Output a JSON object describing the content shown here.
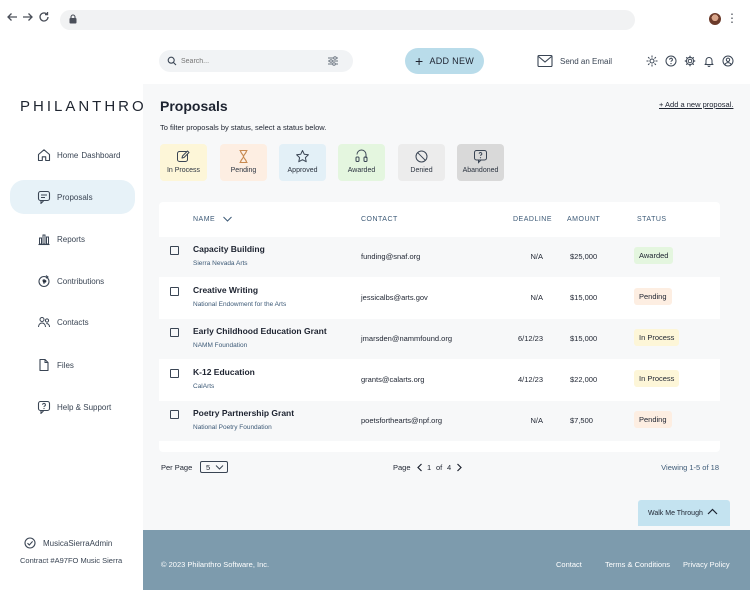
{
  "app": {
    "logo": "PHILANTHRO",
    "accent": "#b9dcea",
    "footer_color": "#7d9bad"
  },
  "browser": {
    "back_icon": "arrow-left-icon",
    "forward_icon": "arrow-right-icon",
    "reload_icon": "reload-icon"
  },
  "sidebar": {
    "items": [
      {
        "label": "Home",
        "sublabel": "Dashboard",
        "icon": "home-icon"
      },
      {
        "label": "Proposals",
        "icon": "chat-icon",
        "active": true
      },
      {
        "label": "Reports",
        "icon": "bar-chart-icon"
      },
      {
        "label": "Contributions",
        "icon": "donation-icon"
      },
      {
        "label": "Contacts",
        "icon": "people-icon"
      },
      {
        "label": "Files",
        "icon": "file-icon"
      },
      {
        "label": "Help & Support",
        "icon": "help-icon"
      }
    ],
    "user": "MusicaSierraAdmin",
    "contract": "Contract #A97FO Music Sierra"
  },
  "topbar": {
    "search_placeholder": "Search...",
    "add_new": "ADD NEW",
    "send_email": "Send an Email"
  },
  "main": {
    "title": "Proposals",
    "add_proposal_link": "+ Add a new proposal.",
    "filter_hint": "To filter proposals by status, select a status below.",
    "status_filters": [
      {
        "label": "In Process",
        "icon": "edit-icon",
        "color": "#fdf6d8"
      },
      {
        "label": "Pending",
        "icon": "hourglass-icon",
        "color": "#fdeee2"
      },
      {
        "label": "Approved",
        "icon": "star-icon",
        "color": "#e3f0f7"
      },
      {
        "label": "Awarded",
        "icon": "award-icon",
        "color": "#e4f6df"
      },
      {
        "label": "Denied",
        "icon": "denied-icon",
        "color": "#ececec"
      },
      {
        "label": "Abandoned",
        "icon": "message-question-icon",
        "color": "#d9d9d9"
      }
    ],
    "table": {
      "headers": {
        "name": "NAME",
        "contact": "CONTACT",
        "deadline": "DEADLINE",
        "amount": "AMOUNT",
        "status": "STATUS"
      },
      "rows": [
        {
          "name": "Capacity Building",
          "org": "Sierra Nevada Arts",
          "contact": "funding@snaf.org",
          "deadline": "N/A",
          "amount": "$25,000",
          "status": "Awarded",
          "status_color": "#e4f6df"
        },
        {
          "name": "Creative Writing",
          "org": "National Endowment for the Arts",
          "contact": "jessicalbs@arts.gov",
          "deadline": "N/A",
          "amount": "$15,000",
          "status": "Pending",
          "status_color": "#fdeee2"
        },
        {
          "name": "Early Childhood Education Grant",
          "org": "NAMM Foundation",
          "contact": "jmarsden@nammfound.org",
          "deadline": "6/12/23",
          "amount": "$15,000",
          "status": "In Process",
          "status_color": "#fdf6d8"
        },
        {
          "name": "K-12 Education",
          "org": "CalArts",
          "contact": "grants@calarts.org",
          "deadline": "4/12/23",
          "amount": "$22,000",
          "status": "In Process",
          "status_color": "#fdf6d8"
        },
        {
          "name": "Poetry Partnership Grant",
          "org": "National Poetry Foundation",
          "contact": "poetsforthearts@npf.org",
          "deadline": "N/A",
          "amount": "$7,500",
          "status": "Pending",
          "status_color": "#fdeee2"
        }
      ]
    },
    "pagination": {
      "per_page_label": "Per Page",
      "per_page_value": "5",
      "page_label": "Page",
      "current_page": "1",
      "of_label": "of",
      "total_pages": "4",
      "viewing": "Viewing 1-5 of 18"
    },
    "walk_me": "Walk Me Through"
  },
  "footer": {
    "copyright": "© 2023 Philanthro Software, Inc.",
    "links": [
      "Contact",
      "Terms & Conditions",
      "Privacy Policy"
    ]
  }
}
